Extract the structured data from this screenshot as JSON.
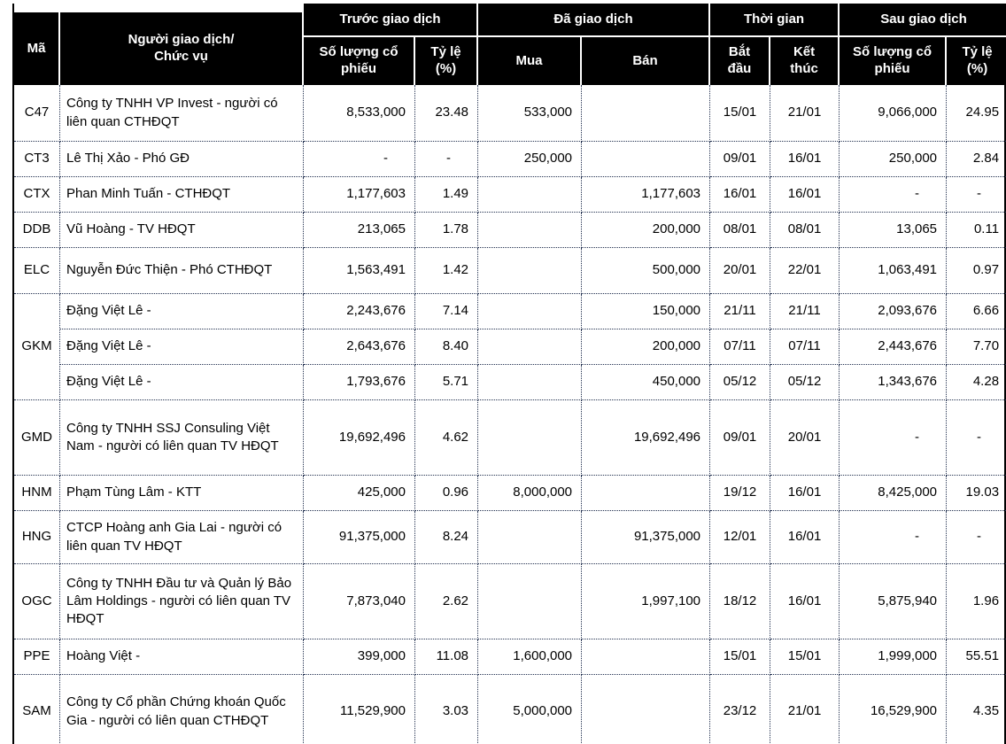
{
  "table": {
    "header": {
      "code": "Mã",
      "trader": "Người giao dịch/\nChức vụ",
      "groups": {
        "before": "Trước giao dịch",
        "traded": "Đã giao dịch",
        "time": "Thời gian",
        "after": "Sau giao dịch"
      },
      "sub": {
        "shares_before": "Số lượng cổ\nphiếu",
        "pct_before": "Tỷ lệ\n(%)",
        "buy": "Mua",
        "sell": "Bán",
        "start": "Bắt\nđầu",
        "end": "Kết\nthúc",
        "shares_after": "Số lượng cổ\nphiếu",
        "pct_after": "Tỷ lệ\n(%)"
      }
    },
    "rows": [
      {
        "code": "C47",
        "rowspan": 1,
        "trader": "Công ty TNHH VP Invest - người có liên quan CTHĐQT",
        "before_shares": "8,533,000",
        "before_pct": "23.48",
        "buy": "533,000",
        "sell": "",
        "start": "15/01",
        "end": "21/01",
        "after_shares": "9,066,000",
        "after_pct": "24.95"
      },
      {
        "code": "CT3",
        "rowspan": 1,
        "trader": "Lê Thị Xảo - Phó GĐ",
        "before_shares": "-",
        "before_pct": "-",
        "buy": "250,000",
        "sell": "",
        "start": "09/01",
        "end": "16/01",
        "after_shares": "250,000",
        "after_pct": "2.84"
      },
      {
        "code": "CTX",
        "rowspan": 1,
        "trader": "Phan Minh Tuấn - CTHĐQT",
        "before_shares": "1,177,603",
        "before_pct": "1.49",
        "buy": "",
        "sell": "1,177,603",
        "start": "16/01",
        "end": "16/01",
        "after_shares": "-",
        "after_pct": "-"
      },
      {
        "code": "DDB",
        "rowspan": 1,
        "trader": "Vũ Hoàng - TV HĐQT",
        "before_shares": "213,065",
        "before_pct": "1.78",
        "buy": "",
        "sell": "200,000",
        "start": "08/01",
        "end": "08/01",
        "after_shares": "13,065",
        "after_pct": "0.11"
      },
      {
        "code": "ELC",
        "rowspan": 1,
        "trader": "Nguyễn Đức Thiện - Phó CTHĐQT",
        "before_shares": "1,563,491",
        "before_pct": "1.42",
        "buy": "",
        "sell": "500,000",
        "start": "20/01",
        "end": "22/01",
        "after_shares": "1,063,491",
        "after_pct": "0.97"
      },
      {
        "code": "GKM",
        "rowspan": 3,
        "trader": "Đặng Việt Lê -",
        "before_shares": "2,243,676",
        "before_pct": "7.14",
        "buy": "",
        "sell": "150,000",
        "start": "21/11",
        "end": "21/11",
        "after_shares": "2,093,676",
        "after_pct": "6.66"
      },
      {
        "code": null,
        "trader": "Đặng Việt Lê -",
        "before_shares": "2,643,676",
        "before_pct": "8.40",
        "buy": "",
        "sell": "200,000",
        "start": "07/11",
        "end": "07/11",
        "after_shares": "2,443,676",
        "after_pct": "7.70"
      },
      {
        "code": null,
        "trader": "Đặng Việt Lê -",
        "before_shares": "1,793,676",
        "before_pct": "5.71",
        "buy": "",
        "sell": "450,000",
        "start": "05/12",
        "end": "05/12",
        "after_shares": "1,343,676",
        "after_pct": "4.28"
      },
      {
        "code": "GMD",
        "rowspan": 1,
        "trader": "Công ty TNHH SSJ Consuling Việt Nam - người có liên quan TV HĐQT",
        "before_shares": "19,692,496",
        "before_pct": "4.62",
        "buy": "",
        "sell": "19,692,496",
        "start": "09/01",
        "end": "20/01",
        "after_shares": "-",
        "after_pct": "-"
      },
      {
        "code": "HNM",
        "rowspan": 1,
        "trader": "Phạm Tùng Lâm - KTT",
        "before_shares": "425,000",
        "before_pct": "0.96",
        "buy": "8,000,000",
        "sell": "",
        "start": "19/12",
        "end": "16/01",
        "after_shares": "8,425,000",
        "after_pct": "19.03"
      },
      {
        "code": "HNG",
        "rowspan": 1,
        "trader": "CTCP Hoàng anh Gia Lai - người có liên quan TV HĐQT",
        "before_shares": "91,375,000",
        "before_pct": "8.24",
        "buy": "",
        "sell": "91,375,000",
        "start": "12/01",
        "end": "16/01",
        "after_shares": "-",
        "after_pct": "-"
      },
      {
        "code": "OGC",
        "rowspan": 1,
        "trader": "Công ty TNHH Đầu tư và Quản lý Bảo Lâm Holdings - người có liên quan TV HĐQT",
        "before_shares": "7,873,040",
        "before_pct": "2.62",
        "buy": "",
        "sell": "1,997,100",
        "start": "18/12",
        "end": "16/01",
        "after_shares": "5,875,940",
        "after_pct": "1.96"
      },
      {
        "code": "PPE",
        "rowspan": 1,
        "trader": "Hoàng Việt -",
        "before_shares": "399,000",
        "before_pct": "11.08",
        "buy": "1,600,000",
        "sell": "",
        "start": "15/01",
        "end": "15/01",
        "after_shares": "1,999,000",
        "after_pct": "55.51"
      },
      {
        "code": "SAM",
        "rowspan": 1,
        "trader": "Công ty Cổ phần Chứng khoán Quốc Gia - người có liên quan CTHĐQT",
        "before_shares": "11,529,900",
        "before_pct": "3.03",
        "buy": "5,000,000",
        "sell": "",
        "start": "23/12",
        "end": "21/01",
        "after_shares": "16,529,900",
        "after_pct": "4.35"
      }
    ],
    "colors": {
      "header_bg": "#000000",
      "header_text": "#ffffff",
      "body_text": "#000000",
      "grid_dotted": "#22304f",
      "outer_border": "#000000"
    }
  }
}
